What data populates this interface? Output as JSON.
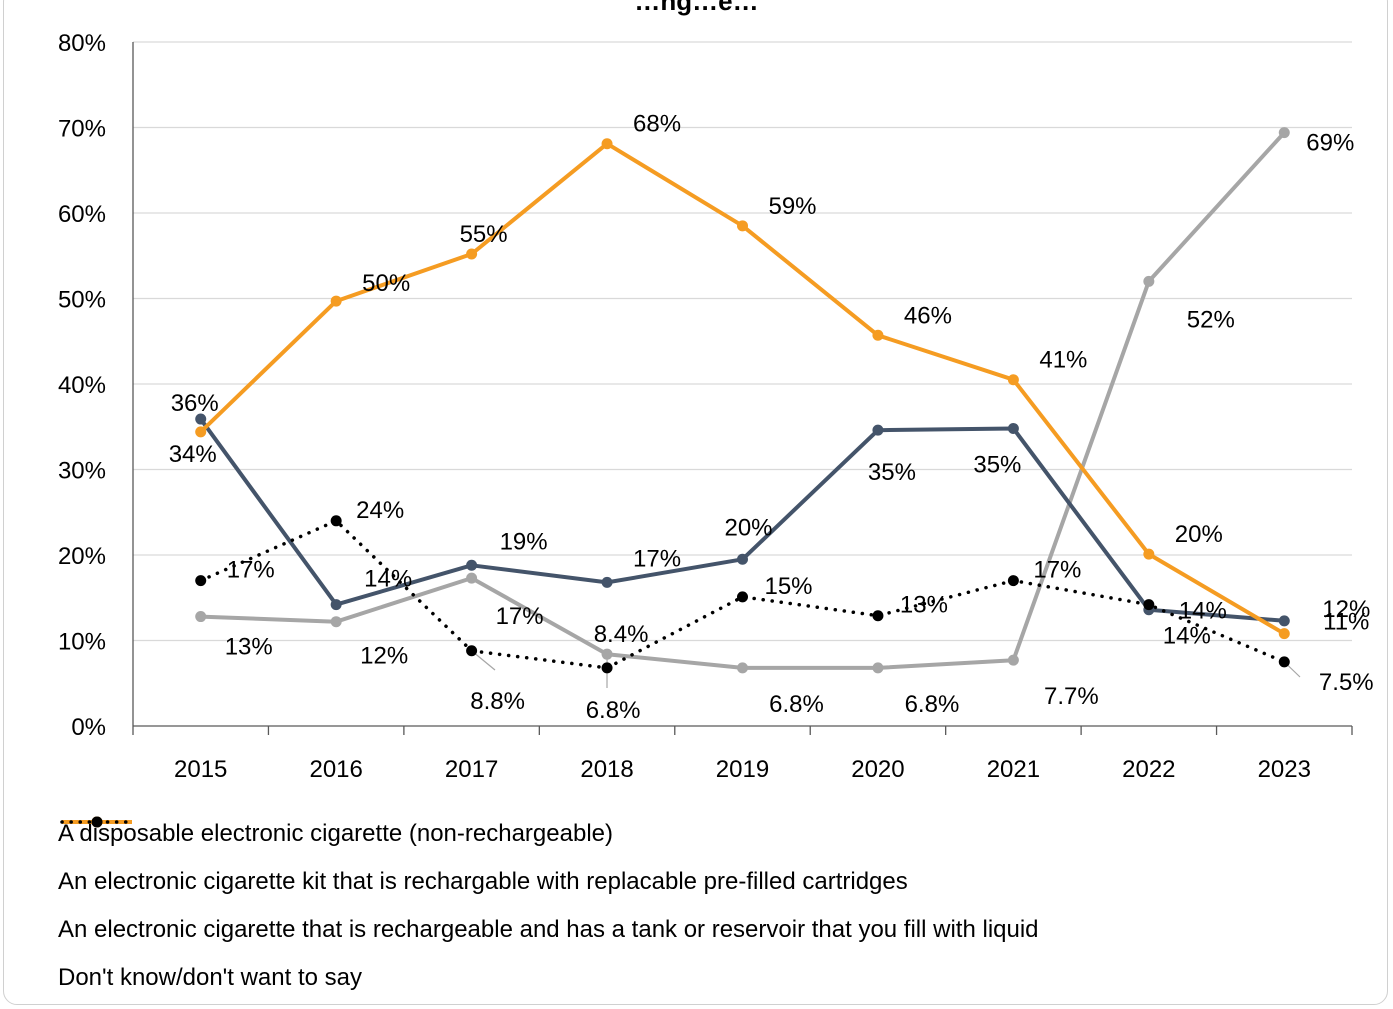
{
  "chart_data": {
    "type": "line",
    "title": "",
    "title_partial": "…ng…e…",
    "categories": [
      "2015",
      "2016",
      "2017",
      "2018",
      "2019",
      "2020",
      "2021",
      "2022",
      "2023"
    ],
    "ylim": [
      0,
      80
    ],
    "yticks": [
      "0%",
      "10%",
      "20%",
      "30%",
      "40%",
      "50%",
      "60%",
      "70%",
      "80%"
    ],
    "grid": "horizontal",
    "legend_position": "bottom",
    "series": [
      {
        "name": "A disposable electronic cigarette (non-rechargeable)",
        "color": "#a6a6a6",
        "style": "solid",
        "values": [
          12.8,
          12.2,
          17.3,
          8.4,
          6.8,
          6.8,
          7.7,
          52.0,
          69.4
        ],
        "labels": [
          "13%",
          "12%",
          "17%",
          "8.4%",
          "6.8%",
          "6.8%",
          "7.7%",
          "52%",
          "69%"
        ]
      },
      {
        "name": "An electronic cigarette kit that is rechargable with replacable pre-filled cartridges",
        "color": "#44546a",
        "style": "solid",
        "values": [
          35.9,
          14.2,
          18.8,
          16.8,
          19.5,
          34.6,
          34.8,
          13.6,
          12.3
        ],
        "labels": [
          "36%",
          "14%",
          "19%",
          "17%",
          "20%",
          "35%",
          "35%",
          "14%",
          "12%"
        ]
      },
      {
        "name": "An electronic cigarette that is rechargeable and has a tank or reservoir that you fill with liquid",
        "color": "#f59c22",
        "style": "solid",
        "values": [
          34.4,
          49.7,
          55.2,
          68.1,
          58.5,
          45.7,
          40.5,
          20.1,
          10.8
        ],
        "labels": [
          "34%",
          "50%",
          "55%",
          "68%",
          "59%",
          "46%",
          "41%",
          "20%",
          "11%"
        ]
      },
      {
        "name": "Don't know/don't want to say",
        "color": "#000000",
        "style": "dotted",
        "values": [
          17.0,
          24.0,
          8.8,
          6.8,
          15.1,
          12.9,
          17.0,
          14.2,
          7.5
        ],
        "labels": [
          "17%",
          "24%",
          "8.8%",
          "6.8%",
          "15%",
          "13%",
          "17%",
          "14%",
          "7.5%"
        ]
      }
    ]
  }
}
